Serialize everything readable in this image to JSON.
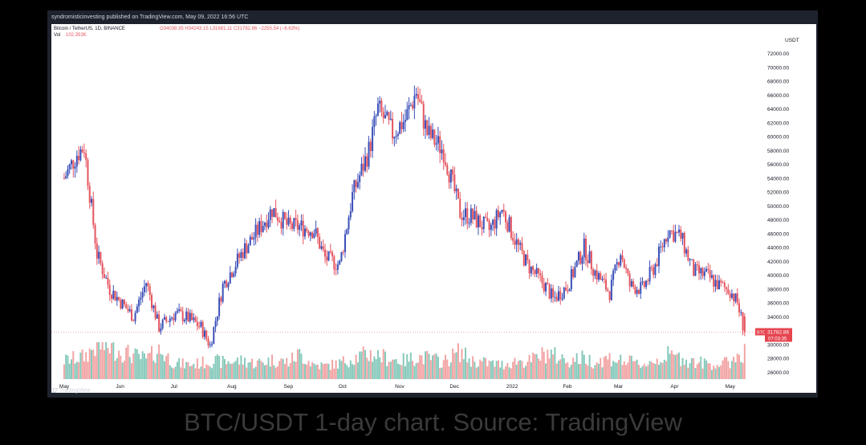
{
  "header": {
    "publisher_line": "syndromisticinvesting published on TradingView.com, May 09, 2022 16:56 UTC"
  },
  "legend": {
    "symbol": "Bitcoin / TetherUS, 1D, BINANCE",
    "ohlc": "O34038.35 H34243.15 L31681.11 C31782.86 −2255.54 (−6.63%)",
    "vol_label": "Vol",
    "vol_value": "102.353K"
  },
  "price_axis": {
    "currency": "USDT",
    "last_price_tag": "BTCUSDT",
    "last_price": "31782.86",
    "countdown": "07:03:35",
    "tick_labels": [
      "72000.00",
      "70000.00",
      "68000.00",
      "66000.00",
      "64000.00",
      "62000.00",
      "60000.00",
      "58000.00",
      "56000.00",
      "54000.00",
      "52000.00",
      "50000.00",
      "48000.00",
      "46000.00",
      "44000.00",
      "42000.00",
      "40000.00",
      "38000.00",
      "36000.00",
      "34000.00",
      "30000.00",
      "28000.00",
      "26000.00"
    ]
  },
  "time_axis": {
    "labels": [
      "May",
      "Jun",
      "Jul",
      "Aug",
      "Sep",
      "Oct",
      "Nov",
      "Dec",
      "2022",
      "Feb",
      "Mar",
      "Apr",
      "May"
    ]
  },
  "footer": {
    "brand": "TradingView",
    "brand_mark": "17"
  },
  "caption": "BTC/USDT 1-day chart. Source: TradingView",
  "colors": {
    "up": "#3a4fb8",
    "down": "#e5555f",
    "vol_up": "#86c9bb",
    "vol_down": "#f2a4a4",
    "last_tag": "#e5454f",
    "frame": "#1e222d"
  },
  "chart_data": {
    "type": "candlestick",
    "title": "Bitcoin / TetherUS, 1D, BINANCE",
    "symbol": "BTCUSDT",
    "interval": "1D",
    "ylim": [
      25000,
      73000
    ],
    "y_scale": "linear",
    "last_close": 31782.86,
    "grid": false,
    "x": [
      "2021-05-01",
      "2021-05-08",
      "2021-05-12",
      "2021-05-19",
      "2021-05-26",
      "2021-06-08",
      "2021-06-15",
      "2021-06-22",
      "2021-07-01",
      "2021-07-08",
      "2021-07-15",
      "2021-07-20",
      "2021-07-27",
      "2021-08-07",
      "2021-08-14",
      "2021-08-23",
      "2021-09-01",
      "2021-09-07",
      "2021-09-15",
      "2021-09-21",
      "2021-09-29",
      "2021-10-06",
      "2021-10-15",
      "2021-10-20",
      "2021-10-28",
      "2021-11-04",
      "2021-11-10",
      "2021-11-16",
      "2021-11-25",
      "2021-12-04",
      "2021-12-10",
      "2021-12-20",
      "2021-12-27",
      "2022-01-05",
      "2022-01-10",
      "2022-01-21",
      "2022-01-24",
      "2022-02-01",
      "2022-02-10",
      "2022-02-16",
      "2022-02-24",
      "2022-03-02",
      "2022-03-07",
      "2022-03-14",
      "2022-03-21",
      "2022-03-28",
      "2022-04-04",
      "2022-04-11",
      "2022-04-18",
      "2022-04-25",
      "2022-05-01",
      "2022-05-05",
      "2022-05-09"
    ],
    "close": [
      54000,
      57500,
      58500,
      43000,
      38000,
      34000,
      39000,
      32500,
      34500,
      33800,
      32500,
      29800,
      38500,
      43500,
      46000,
      49500,
      47000,
      47000,
      46500,
      42500,
      41500,
      51500,
      58000,
      64000,
      60500,
      62500,
      66500,
      60500,
      58000,
      49000,
      48500,
      46500,
      49500,
      44000,
      41500,
      38000,
      36500,
      38500,
      44000,
      40500,
      37500,
      43500,
      38500,
      38000,
      41500,
      46500,
      45500,
      40500,
      40000,
      38500,
      37800,
      36000,
      31782.86
    ],
    "volume_k": [
      70,
      80,
      85,
      130,
      120,
      90,
      75,
      110,
      60,
      55,
      60,
      70,
      65,
      70,
      60,
      72,
      65,
      95,
      55,
      50,
      60,
      80,
      95,
      90,
      75,
      70,
      85,
      80,
      65,
      105,
      70,
      60,
      55,
      70,
      65,
      100,
      90,
      70,
      80,
      65,
      80,
      70,
      65,
      55,
      70,
      90,
      80,
      65,
      60,
      55,
      65,
      90,
      102.353
    ]
  }
}
